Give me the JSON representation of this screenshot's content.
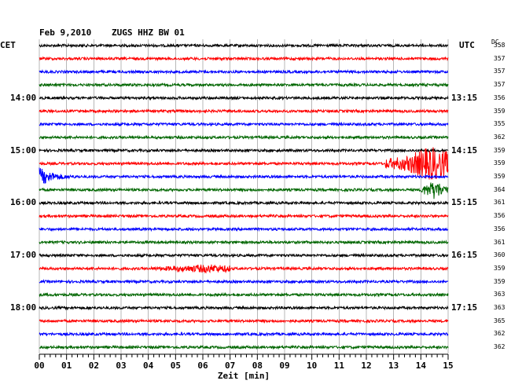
{
  "header": {
    "date": "Feb 9,2010",
    "station": "ZUGS HHZ BW 01",
    "left_tz": "CET",
    "right_tz": "UTC",
    "dc_label": "DC"
  },
  "colors": {
    "cycle": [
      "#000000",
      "#ff0000",
      "#0000ff",
      "#006600"
    ],
    "grid": "#888888"
  },
  "chart_data": {
    "type": "line",
    "chart_kind": "helicorder",
    "xlabel": "Zeit [min]",
    "xlim": [
      0,
      15
    ],
    "x_ticks": [
      "00",
      "01",
      "02",
      "03",
      "04",
      "05",
      "06",
      "07",
      "08",
      "09",
      "10",
      "11",
      "12",
      "13",
      "14",
      "15"
    ],
    "trace_minutes": 15,
    "left_time_labels": [
      {
        "row": 4,
        "label": "14:00"
      },
      {
        "row": 8,
        "label": "15:00"
      },
      {
        "row": 12,
        "label": "16:00"
      },
      {
        "row": 16,
        "label": "17:00"
      },
      {
        "row": 20,
        "label": "18:00"
      }
    ],
    "right_time_labels": [
      {
        "row": 4,
        "label": "13:15"
      },
      {
        "row": 8,
        "label": "14:15"
      },
      {
        "row": 12,
        "label": "15:15"
      },
      {
        "row": 16,
        "label": "16:15"
      },
      {
        "row": 20,
        "label": "17:15"
      }
    ],
    "dc_offsets": [
      "358",
      "357",
      "357",
      "357",
      "356",
      "359",
      "355",
      "362",
      "359",
      "359",
      "359",
      "364",
      "361",
      "356",
      "356",
      "361",
      "360",
      "359",
      "359",
      "363",
      "363",
      "365",
      "362",
      "362"
    ],
    "events": [
      {
        "row": 9,
        "start_min": 12.7,
        "end_min": 15.0,
        "peak_min": 14.4,
        "amplitude": "large"
      },
      {
        "row": 10,
        "start_min": 0.0,
        "end_min": 5.0,
        "peak_min": 0.2,
        "amplitude": "coda"
      },
      {
        "row": 11,
        "start_min": 14.0,
        "end_min": 15.0,
        "peak_min": 14.5,
        "amplitude": "spill"
      },
      {
        "row": 17,
        "start_min": 4.0,
        "end_min": 7.0,
        "peak_min": 6.2,
        "amplitude": "medium"
      }
    ]
  }
}
